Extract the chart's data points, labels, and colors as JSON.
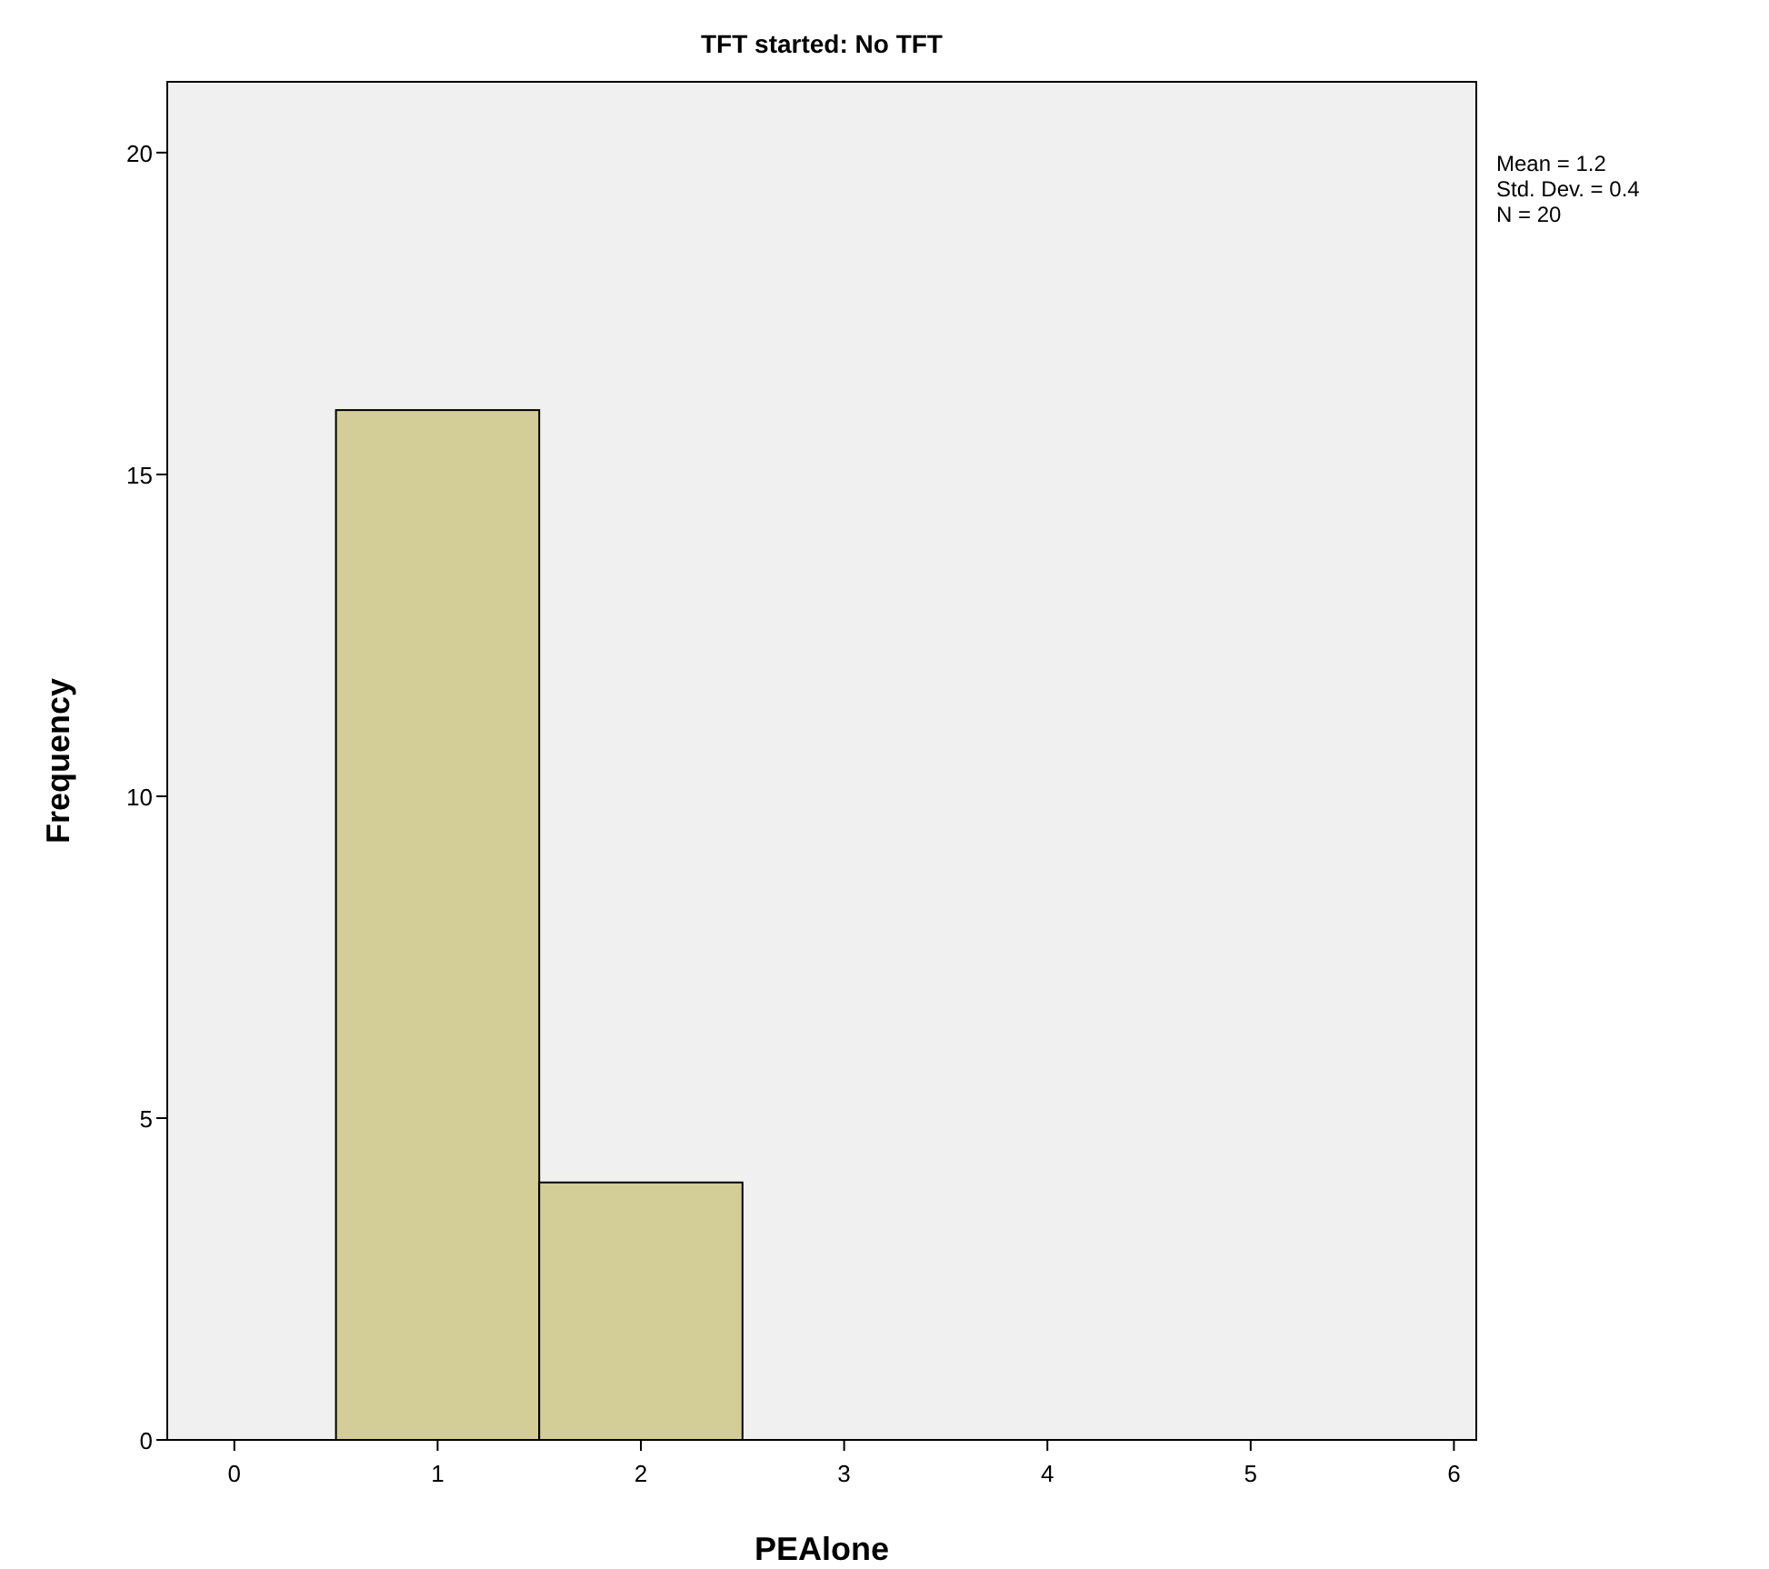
{
  "chart_data": {
    "type": "histogram",
    "title": "TFT started: No TFT",
    "xlabel": "PEAlone",
    "ylabel": "Frequency",
    "bins": [
      0.5,
      1.5,
      2.5
    ],
    "values": [
      16,
      4
    ],
    "color": "#d3ce97",
    "xlim": [
      -0.33,
      6.11
    ],
    "xticks": [
      0,
      1,
      2,
      3,
      4,
      5,
      6
    ],
    "ylim": [
      0,
      21.1
    ],
    "yticks": [
      0,
      5,
      10,
      15,
      20
    ],
    "annotations": [
      "Mean = 1.2",
      "Std. Dev. = 0.4",
      "N = 20"
    ]
  }
}
